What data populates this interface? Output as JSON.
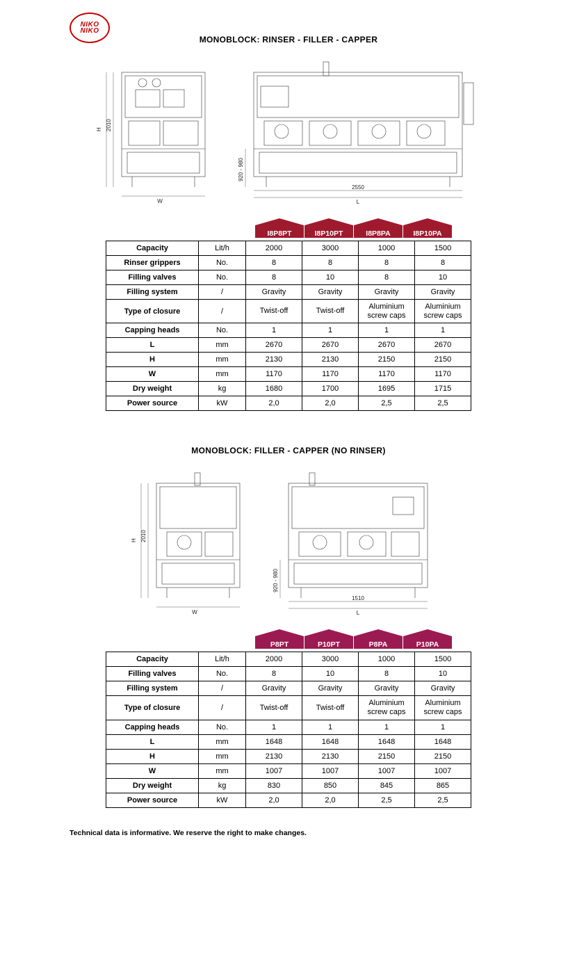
{
  "logo": {
    "line1": "NIKO",
    "line2": "NIKO"
  },
  "section1": {
    "title": "MONOBLOCK: RINSER - FILLER - CAPPER",
    "drawing": {
      "left": {
        "h_label": "H",
        "h_val": "2010",
        "w_label": "W"
      },
      "right": {
        "worktop": "920 - 980",
        "l_val": "2550",
        "l_label": "L"
      }
    },
    "models": [
      "I8P8PT",
      "I8P10PT",
      "I8P8PA",
      "I8P10PA"
    ],
    "model_color": "#a01a2e",
    "rows": [
      {
        "param": "Capacity",
        "unit": "Lit/h",
        "vals": [
          "2000",
          "3000",
          "1000",
          "1500"
        ]
      },
      {
        "param": "Rinser grippers",
        "unit": "No.",
        "vals": [
          "8",
          "8",
          "8",
          "8"
        ]
      },
      {
        "param": "Filling valves",
        "unit": "No.",
        "vals": [
          "8",
          "10",
          "8",
          "10"
        ]
      },
      {
        "param": "Filling system",
        "unit": "/",
        "vals": [
          "Gravity",
          "Gravity",
          "Gravity",
          "Gravity"
        ]
      },
      {
        "param": "Type of closure",
        "unit": "/",
        "vals": [
          "Twist-off",
          "Twist-off",
          "Aluminium screw caps",
          "Aluminium screw caps"
        ],
        "tall": true
      },
      {
        "param": "Capping heads",
        "unit": "No.",
        "vals": [
          "1",
          "1",
          "1",
          "1"
        ]
      },
      {
        "param": "L",
        "unit": "mm",
        "vals": [
          "2670",
          "2670",
          "2670",
          "2670"
        ]
      },
      {
        "param": "H",
        "unit": "mm",
        "vals": [
          "2130",
          "2130",
          "2150",
          "2150"
        ]
      },
      {
        "param": "W",
        "unit": "mm",
        "vals": [
          "1170",
          "1170",
          "1170",
          "1170"
        ]
      },
      {
        "param": "Dry weight",
        "unit": "kg",
        "vals": [
          "1680",
          "1700",
          "1695",
          "1715"
        ]
      },
      {
        "param": "Power source",
        "unit": "kW",
        "vals": [
          "2,0",
          "2,0",
          "2,5",
          "2,5"
        ]
      }
    ]
  },
  "section2": {
    "title": "MONOBLOCK: FILLER - CAPPER (NO RINSER)",
    "drawing": {
      "left": {
        "h_label": "H",
        "h_val": "2010",
        "w_label": "W"
      },
      "right": {
        "worktop": "920 - 980",
        "l_val": "1510",
        "l_label": "L"
      }
    },
    "models": [
      "P8PT",
      "P10PT",
      "P8PA",
      "P10PA"
    ],
    "model_color": "#9c1a52",
    "rows": [
      {
        "param": "Capacity",
        "unit": "Lit/h",
        "vals": [
          "2000",
          "3000",
          "1000",
          "1500"
        ]
      },
      {
        "param": "Filling valves",
        "unit": "No.",
        "vals": [
          "8",
          "10",
          "8",
          "10"
        ]
      },
      {
        "param": "Filling system",
        "unit": "/",
        "vals": [
          "Gravity",
          "Gravity",
          "Gravity",
          "Gravity"
        ]
      },
      {
        "param": "Type of closure",
        "unit": "/",
        "vals": [
          "Twist-off",
          "Twist-off",
          "Aluminium screw caps",
          "Aluminium screw caps"
        ],
        "tall": true
      },
      {
        "param": "Capping heads",
        "unit": "No.",
        "vals": [
          "1",
          "1",
          "1",
          "1"
        ]
      },
      {
        "param": "L",
        "unit": "mm",
        "vals": [
          "1648",
          "1648",
          "1648",
          "1648"
        ]
      },
      {
        "param": "H",
        "unit": "mm",
        "vals": [
          "2130",
          "2130",
          "2150",
          "2150"
        ]
      },
      {
        "param": "W",
        "unit": "mm",
        "vals": [
          "1007",
          "1007",
          "1007",
          "1007"
        ]
      },
      {
        "param": "Dry weight",
        "unit": "kg",
        "vals": [
          "830",
          "850",
          "845",
          "865"
        ]
      },
      {
        "param": "Power source",
        "unit": "kW",
        "vals": [
          "2,0",
          "2,0",
          "2,5",
          "2,5"
        ]
      }
    ]
  },
  "footer": "Technical data is informative. We reserve the right to make changes.",
  "style": {
    "border_color": "#000",
    "font": "Arial",
    "title_fs": 12,
    "cell_fs": 11
  }
}
